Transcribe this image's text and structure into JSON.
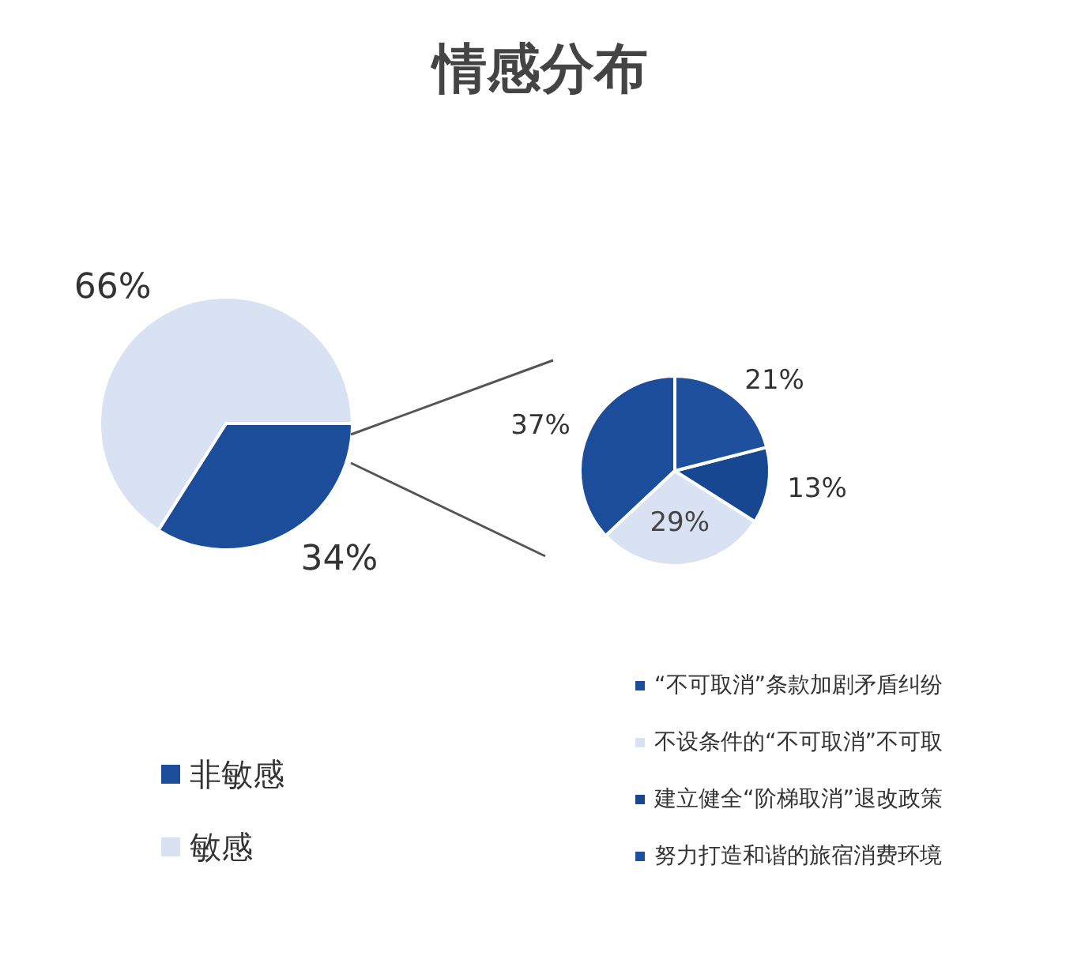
{
  "chart_data": [
    {
      "type": "pie",
      "title": "情感分布",
      "categories": [
        "非敏感",
        "敏感"
      ],
      "values": [
        34,
        66
      ],
      "value_labels": [
        "34%",
        "66%"
      ],
      "colors": [
        "#1c4d9a",
        "#d8e2f3"
      ],
      "legend": "bottom left"
    },
    {
      "type": "pie",
      "categories": [
        "“不可取消”条款加剧矛盾纠纷",
        "不设条件的“不可取消”不可取",
        "建立健全“阶梯取消”退改政策",
        "努力打造和谐的旅宿消费环境"
      ],
      "values": [
        37,
        29,
        13,
        21
      ],
      "value_labels": [
        "37%",
        "29%",
        "13%",
        "21%"
      ],
      "colors": [
        "#1c4d9a",
        "#d8e2f3",
        "#174791",
        "#1e509d"
      ],
      "legend": "bottom right"
    }
  ]
}
